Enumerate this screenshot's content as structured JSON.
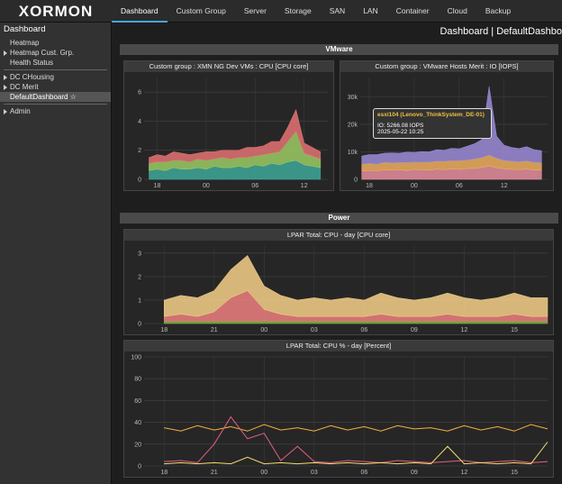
{
  "nav": {
    "logo": "XORMON",
    "tabs": [
      "Dashboard",
      "Custom Group",
      "Server",
      "Storage",
      "SAN",
      "LAN",
      "Container",
      "Cloud",
      "Backup"
    ],
    "active": 0
  },
  "sidebar": {
    "title": "Dashboard",
    "groups": [
      [
        {
          "label": "Heatmap",
          "arrow": false
        },
        {
          "label": "Heatmap Cust. Grp.",
          "arrow": true
        },
        {
          "label": "Health Status",
          "arrow": false
        }
      ],
      [
        {
          "label": "DC CHousing",
          "arrow": true
        },
        {
          "label": "DC Merit",
          "arrow": true
        },
        {
          "label": "DefaultDashboard ☆",
          "arrow": false,
          "selected": true
        }
      ],
      [
        {
          "label": "Admin",
          "arrow": true
        }
      ]
    ]
  },
  "breadcrumb": "Dashboard | DefaultDashbo",
  "sections": [
    {
      "title": "VMware",
      "panels": [
        {
          "title": "Custom group : XMN NG Dev VMs : CPU [CPU core]",
          "chart": {
            "type": "stacked_area",
            "x": [
              17,
              18,
              19,
              20,
              21,
              22,
              23,
              24,
              25,
              26,
              27,
              28,
              29,
              30,
              31,
              32,
              33,
              34,
              35,
              36,
              37,
              38
            ],
            "xlim": [
              16.4,
              38.9
            ],
            "xticks": [
              {
                "value": 18,
                "label": "18"
              },
              {
                "value": 24,
                "label": "00"
              },
              {
                "value": 30,
                "label": "06"
              },
              {
                "value": 36,
                "label": "12"
              }
            ],
            "ylim": [
              0,
              7
            ],
            "yticks": [
              0,
              2,
              4,
              6
            ],
            "series": [
              {
                "color": "#3fa89a",
                "values": [
                  0.6,
                  0.7,
                  0.6,
                  0.8,
                  0.7,
                  0.7,
                  0.8,
                  0.7,
                  0.9,
                  0.8,
                  0.8,
                  0.9,
                  0.8,
                  1.0,
                  0.9,
                  1.1,
                  1.0,
                  1.2,
                  1.3,
                  1.0,
                  0.9,
                  0.8
                ]
              },
              {
                "color": "#9ccc65",
                "values": [
                  0.5,
                  0.5,
                  0.6,
                  0.5,
                  0.6,
                  0.5,
                  0.6,
                  0.6,
                  0.5,
                  0.7,
                  0.6,
                  0.6,
                  0.7,
                  0.6,
                  0.8,
                  0.7,
                  0.9,
                  1.4,
                  2.0,
                  0.8,
                  0.7,
                  0.6
                ]
              },
              {
                "color": "#e57373",
                "values": [
                  0.4,
                  0.5,
                  0.4,
                  0.6,
                  0.5,
                  0.5,
                  0.4,
                  0.6,
                  0.5,
                  0.5,
                  0.6,
                  0.5,
                  0.7,
                  0.6,
                  0.6,
                  0.8,
                  0.7,
                  1.0,
                  1.5,
                  0.7,
                  0.6,
                  0.5
                ]
              }
            ]
          }
        },
        {
          "title": "Custom group : VMware Hosts Merit : IO [IOPS]",
          "chart": {
            "type": "stacked_area",
            "x": [
              17,
              18,
              19,
              20,
              21,
              22,
              23,
              24,
              25,
              26,
              27,
              28,
              29,
              30,
              31,
              32,
              33,
              34,
              35,
              36,
              37,
              38,
              39,
              40,
              41
            ],
            "xlim": [
              16.8,
              41.8
            ],
            "xticks": [
              {
                "value": 18,
                "label": "18"
              },
              {
                "value": 24,
                "label": "00"
              },
              {
                "value": 30,
                "label": "06"
              },
              {
                "value": 36,
                "label": "12"
              }
            ],
            "ylim": [
              0,
              37000
            ],
            "yticks": [
              0,
              {
                "value": 10000,
                "label": "10k"
              },
              {
                "value": 20000,
                "label": "20k"
              },
              {
                "value": 30000,
                "label": "30k"
              }
            ],
            "series": [
              {
                "color": "#e88fa0",
                "values": [
                  3000,
                  3200,
                  3100,
                  3400,
                  3300,
                  3500,
                  3200,
                  3600,
                  3400,
                  3300,
                  3700,
                  3500,
                  3800,
                  3600,
                  3900,
                  4000,
                  4300,
                  4800,
                  4200,
                  3800,
                  3600,
                  3500,
                  3700,
                  3400,
                  3300
                ]
              },
              {
                "color": "#f0b060",
                "values": [
                  2500,
                  2600,
                  2400,
                  2800,
                  2700,
                  2600,
                  2900,
                  2700,
                  2800,
                  3000,
                  2900,
                  3100,
                  3000,
                  3200,
                  3100,
                  3400,
                  3600,
                  4000,
                  3500,
                  3100,
                  3000,
                  2900,
                  3000,
                  2800,
                  2700
                ]
              },
              {
                "color": "#9c8cd8",
                "values": [
                  3000,
                  3200,
                  3500,
                  3300,
                  3600,
                  3400,
                  3800,
                  3500,
                  3900,
                  3700,
                  4200,
                  4000,
                  4500,
                  4300,
                  5000,
                  5500,
                  6500,
                  25000,
                  8000,
                  5500,
                  5000,
                  4800,
                  5200,
                  4600,
                  4400
                ]
              }
            ],
            "tooltip": {
              "title": "esxi104 (Lenovo_ThinkSystem_DE-01)",
              "value": "IO: 5266.08 IOPS",
              "date": "2025-05-22 10:25"
            }
          }
        }
      ]
    },
    {
      "title": "Power",
      "panels": [
        {
          "title": "LPAR Total: CPU - day [CPU core]",
          "chart": {
            "type": "stacked_area",
            "x": [
              18,
              19,
              20,
              21,
              22,
              23,
              24,
              25,
              26,
              27,
              28,
              29,
              30,
              31,
              32,
              33,
              34,
              35,
              36,
              37,
              38,
              39,
              40,
              41
            ],
            "xlim": [
              16.8,
              41
            ],
            "xticks": [
              {
                "value": 18,
                "label": "18"
              },
              {
                "value": 21,
                "label": "21"
              },
              {
                "value": 24,
                "label": "00"
              },
              {
                "value": 27,
                "label": "03"
              },
              {
                "value": 30,
                "label": "06"
              },
              {
                "value": 33,
                "label": "09"
              },
              {
                "value": 36,
                "label": "12"
              },
              {
                "value": 39,
                "label": "15"
              }
            ],
            "ylim": [
              0,
              3.3
            ],
            "yticks": [
              0,
              1,
              2,
              3
            ],
            "series": [
              {
                "color": "#7cb342",
                "values": [
                  0.1,
                  0.1,
                  0.1,
                  0.1,
                  0.1,
                  0.1,
                  0.1,
                  0.1,
                  0.1,
                  0.1,
                  0.1,
                  0.1,
                  0.1,
                  0.1,
                  0.1,
                  0.1,
                  0.1,
                  0.1,
                  0.1,
                  0.1,
                  0.1,
                  0.1,
                  0.1,
                  0.1
                ]
              },
              {
                "color": "#f08080",
                "values": [
                  0.2,
                  0.3,
                  0.2,
                  0.4,
                  1.0,
                  1.3,
                  0.5,
                  0.3,
                  0.2,
                  0.2,
                  0.2,
                  0.2,
                  0.2,
                  0.3,
                  0.2,
                  0.2,
                  0.2,
                  0.3,
                  0.2,
                  0.2,
                  0.2,
                  0.3,
                  0.2,
                  0.2
                ]
              },
              {
                "color": "#f7d08a",
                "values": [
                  0.7,
                  0.8,
                  0.8,
                  0.9,
                  1.2,
                  1.5,
                  1.0,
                  0.8,
                  0.7,
                  0.8,
                  0.7,
                  0.8,
                  0.7,
                  0.9,
                  0.8,
                  0.7,
                  0.8,
                  0.9,
                  0.8,
                  0.7,
                  0.8,
                  0.9,
                  0.8,
                  0.8
                ]
              }
            ]
          }
        },
        {
          "title": "LPAR Total: CPU % - day [Percent]",
          "chart": {
            "type": "line",
            "x": [
              18,
              19,
              20,
              21,
              22,
              23,
              24,
              25,
              26,
              27,
              28,
              29,
              30,
              31,
              32,
              33,
              34,
              35,
              36,
              37,
              38,
              39,
              40,
              41
            ],
            "xlim": [
              16.8,
              41
            ],
            "xticks": [
              {
                "value": 18,
                "label": "18"
              },
              {
                "value": 21,
                "label": "21"
              },
              {
                "value": 24,
                "label": "00"
              },
              {
                "value": 27,
                "label": "03"
              },
              {
                "value": 30,
                "label": "06"
              },
              {
                "value": 33,
                "label": "09"
              },
              {
                "value": 36,
                "label": "12"
              },
              {
                "value": 39,
                "label": "15"
              }
            ],
            "ylim": [
              0,
              100
            ],
            "yticks": [
              0,
              20,
              40,
              60,
              80,
              100
            ],
            "series": [
              {
                "color": "#f5b041",
                "values": [
                  35,
                  32,
                  37,
                  33,
                  36,
                  32,
                  38,
                  33,
                  35,
                  32,
                  37,
                  33,
                  36,
                  32,
                  37,
                  34,
                  35,
                  32,
                  37,
                  33,
                  36,
                  32,
                  38,
                  34
                ]
              },
              {
                "color": "#e06080",
                "values": [
                  4,
                  5,
                  3,
                  20,
                  45,
                  25,
                  30,
                  5,
                  18,
                  4,
                  3,
                  5,
                  4,
                  3,
                  5,
                  4,
                  3,
                  4,
                  5,
                  3,
                  4,
                  5,
                  3,
                  4
                ]
              },
              {
                "color": "#f7dc6f",
                "values": [
                  2,
                  3,
                  2,
                  3,
                  2,
                  8,
                  2,
                  3,
                  2,
                  3,
                  2,
                  3,
                  2,
                  3,
                  2,
                  3,
                  2,
                  18,
                  2,
                  3,
                  2,
                  3,
                  2,
                  22
                ]
              }
            ]
          }
        }
      ]
    }
  ]
}
